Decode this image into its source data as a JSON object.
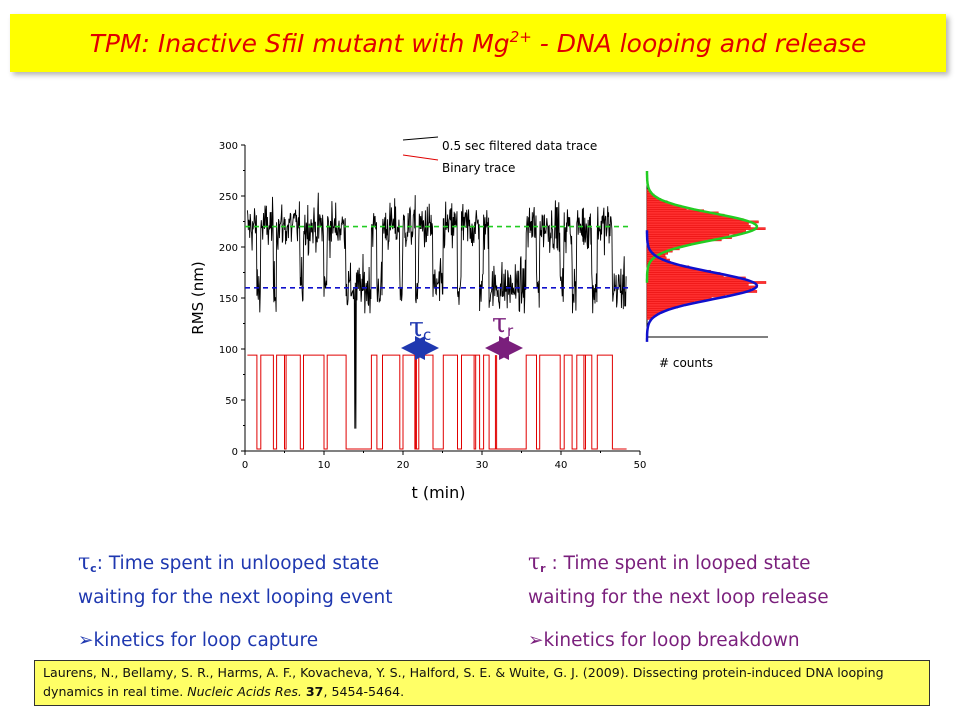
{
  "title": {
    "main": "TPM: Inactive SfiI mutant with Mg",
    "sup": "2+",
    "tail": " - DNA looping and release"
  },
  "legend": {
    "black": "0.5 sec filtered data trace",
    "red": "Binary trace"
  },
  "annotations": {
    "tau_c": "τ",
    "tau_c_sub": "c",
    "tau_r": "τ",
    "tau_r_sub": "r",
    "counts_label": "# counts"
  },
  "colors": {
    "black_trace": "#000000",
    "binary_trace": "#e00000",
    "unlooped_level": "#22cc22",
    "looped_level": "#1010cc",
    "tau_c_arrow": "#1f38b0",
    "tau_r_arrow": "#7a1f7c",
    "title_bg": "#ffff00",
    "title_text": "#e00000"
  },
  "chart_data": [
    {
      "type": "line",
      "xlabel": "t (min)",
      "ylabel": "RMS (nm)",
      "xlim": [
        0,
        50
      ],
      "ylim": [
        0,
        300
      ],
      "xticks": [
        0,
        10,
        20,
        30,
        40,
        50
      ],
      "yticks": [
        0,
        50,
        100,
        150,
        200,
        250,
        300
      ],
      "reference_lines": [
        {
          "y": 220,
          "color": "#22cc22",
          "style": "dashed"
        },
        {
          "y": 160,
          "color": "#1010cc",
          "style": "dashed"
        }
      ],
      "binary_levels": {
        "high": 94,
        "low": 2
      },
      "series": [
        {
          "name": "0.5 sec filtered data trace",
          "color": "#000000",
          "segments": [
            [
              0.3,
              1.5,
              "u"
            ],
            [
              1.5,
              2.0,
              "l"
            ],
            [
              2.0,
              3.6,
              "u"
            ],
            [
              3.6,
              4.0,
              "l"
            ],
            [
              4.0,
              7.0,
              "u"
            ],
            [
              7.0,
              7.4,
              "l"
            ],
            [
              7.4,
              10.0,
              "u"
            ],
            [
              10.0,
              10.4,
              "l"
            ],
            [
              10.4,
              12.8,
              "u"
            ],
            [
              12.8,
              13.9,
              "l"
            ],
            [
              13.9,
              14.1,
              "x"
            ],
            [
              14.1,
              16.0,
              "l"
            ],
            [
              16.0,
              16.7,
              "u"
            ],
            [
              16.7,
              17.4,
              "l"
            ],
            [
              17.4,
              19.6,
              "u"
            ],
            [
              19.6,
              20.0,
              "l"
            ],
            [
              20.0,
              21.6,
              "u"
            ],
            [
              21.6,
              22.0,
              "l"
            ],
            [
              22.0,
              23.8,
              "u"
            ],
            [
              23.8,
              25.1,
              "l"
            ],
            [
              25.1,
              26.9,
              "u"
            ],
            [
              26.9,
              27.4,
              "l"
            ],
            [
              27.4,
              29.7,
              "u"
            ],
            [
              29.7,
              30.2,
              "l"
            ],
            [
              30.2,
              30.9,
              "u"
            ],
            [
              30.9,
              35.6,
              "l"
            ],
            [
              35.6,
              36.9,
              "u"
            ],
            [
              36.9,
              37.3,
              "l"
            ],
            [
              37.3,
              39.9,
              "u"
            ],
            [
              39.9,
              40.4,
              "l"
            ],
            [
              40.4,
              41.4,
              "u"
            ],
            [
              41.4,
              42.0,
              "l"
            ],
            [
              42.0,
              43.9,
              "u"
            ],
            [
              43.9,
              44.6,
              "l"
            ],
            [
              44.6,
              46.5,
              "u"
            ],
            [
              46.5,
              48.3,
              "l"
            ]
          ]
        },
        {
          "name": "Binary trace",
          "color": "#e00000"
        }
      ]
    },
    {
      "type": "histogram",
      "xlabel": "# counts",
      "orientation": "horizontal",
      "ylim": [
        0,
        300
      ],
      "fits": [
        {
          "center": 220,
          "sigma": 13,
          "color": "#22cc22"
        },
        {
          "center": 162,
          "sigma": 13,
          "color": "#1010cc"
        }
      ]
    }
  ],
  "text_blocks": {
    "left": {
      "tau": "τ",
      "sub": "c",
      "line1": ":  Time spent in unlooped state",
      "line2": "waiting for the next looping event",
      "bullet": "kinetics for loop capture"
    },
    "right": {
      "tau": "τ",
      "sub": "r",
      "line1": " : Time spent in looped state",
      "line2": "waiting for the next loop release",
      "bullet": "kinetics for loop breakdown"
    }
  },
  "reference": {
    "authors": "Laurens, N., Bellamy, S. R., Harms, A. F., Kovacheva, Y. S., Halford, S. E. & Wuite, G. J. (2009). Dissecting protein-induced DNA looping",
    "line2_prefix": "dynamics in real time. ",
    "journal": "Nucleic Acids Res.",
    "volume": "37",
    "pages": ", 5454-5464."
  }
}
